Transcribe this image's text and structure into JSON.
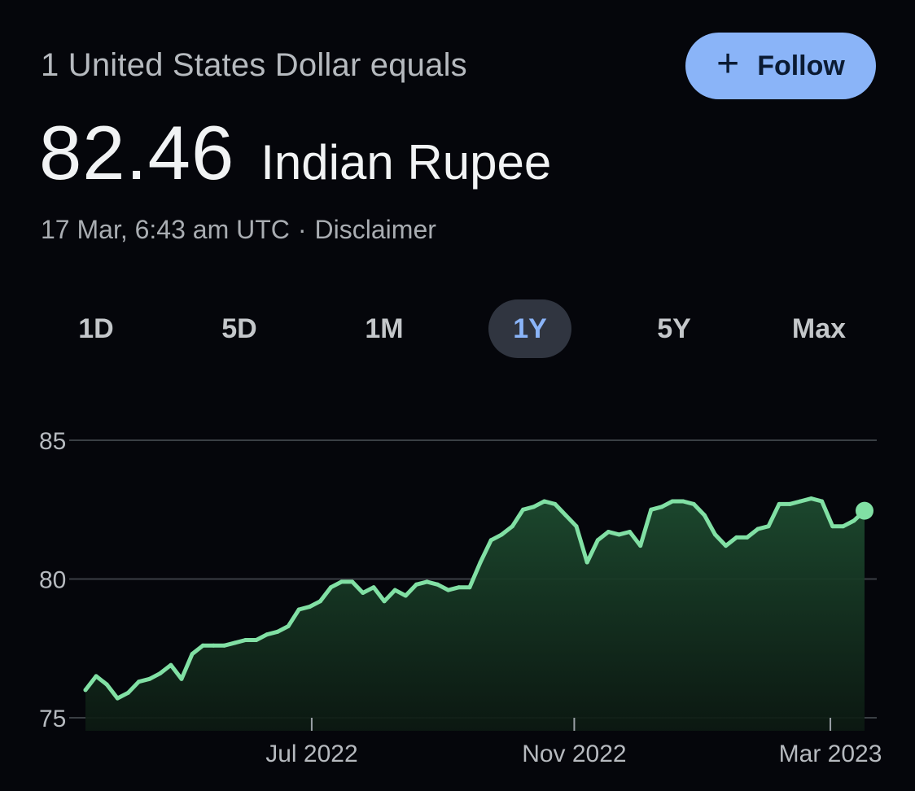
{
  "header": {
    "subtitle": "1 United States Dollar equals",
    "rate_value": "82.46",
    "rate_currency": "Indian Rupee",
    "timestamp": "17 Mar, 6:43 am UTC",
    "separator": "·",
    "disclaimer": "Disclaimer",
    "follow_icon": "plus-icon",
    "follow_label": "Follow"
  },
  "ranges": {
    "items": [
      "1D",
      "5D",
      "1M",
      "1Y",
      "5Y",
      "Max"
    ],
    "active": "1Y"
  },
  "colors": {
    "accent": "#8ab4f8",
    "line": "#81e0a4",
    "fill": "#1d4a2f",
    "grid": "#3a3f44",
    "background": "#05060b"
  },
  "chart_data": {
    "type": "area",
    "ylim": [
      75,
      85
    ],
    "yticks": [
      75,
      80,
      85
    ],
    "xticks": [
      "Jul 2022",
      "Nov 2022",
      "Mar 2023"
    ],
    "xtick_dates": [
      "2022-07-01",
      "2022-11-01",
      "2023-03-01"
    ],
    "xlim": [
      "2022-03-17",
      "2023-03-17"
    ],
    "grid": true,
    "series": [
      {
        "dates": [
          "2022-03-17",
          "2022-03-22",
          "2022-03-27",
          "2022-04-01",
          "2022-04-06",
          "2022-04-11",
          "2022-04-16",
          "2022-04-21",
          "2022-04-26",
          "2022-05-01",
          "2022-05-06",
          "2022-05-11",
          "2022-05-16",
          "2022-05-21",
          "2022-05-26",
          "2022-05-31",
          "2022-06-05",
          "2022-06-10",
          "2022-06-15",
          "2022-06-20",
          "2022-06-25",
          "2022-06-30",
          "2022-07-05",
          "2022-07-10",
          "2022-07-15",
          "2022-07-20",
          "2022-07-25",
          "2022-07-30",
          "2022-08-04",
          "2022-08-09",
          "2022-08-14",
          "2022-08-19",
          "2022-08-24",
          "2022-08-29",
          "2022-09-03",
          "2022-09-08",
          "2022-09-13",
          "2022-09-18",
          "2022-09-23",
          "2022-09-28",
          "2022-10-03",
          "2022-10-08",
          "2022-10-13",
          "2022-10-18",
          "2022-10-23",
          "2022-10-28",
          "2022-11-02",
          "2022-11-07",
          "2022-11-12",
          "2022-11-17",
          "2022-11-22",
          "2022-11-27",
          "2022-12-02",
          "2022-12-07",
          "2022-12-12",
          "2022-12-17",
          "2022-12-22",
          "2022-12-27",
          "2023-01-01",
          "2023-01-06",
          "2023-01-11",
          "2023-01-16",
          "2023-01-21",
          "2023-01-26",
          "2023-01-31",
          "2023-02-05",
          "2023-02-10",
          "2023-02-15",
          "2023-02-20",
          "2023-02-25",
          "2023-03-02",
          "2023-03-07",
          "2023-03-12",
          "2023-03-17"
        ],
        "values": [
          76.0,
          76.5,
          76.2,
          75.7,
          75.9,
          76.3,
          76.4,
          76.6,
          76.9,
          76.4,
          77.3,
          77.6,
          77.6,
          77.6,
          77.7,
          77.8,
          77.8,
          78.0,
          78.1,
          78.3,
          78.9,
          79.0,
          79.2,
          79.7,
          79.9,
          79.9,
          79.5,
          79.7,
          79.2,
          79.6,
          79.4,
          79.8,
          79.9,
          79.8,
          79.6,
          79.7,
          79.7,
          80.6,
          81.4,
          81.6,
          81.9,
          82.5,
          82.6,
          82.8,
          82.7,
          82.3,
          81.9,
          80.6,
          81.4,
          81.7,
          81.6,
          81.7,
          81.2,
          82.5,
          82.6,
          82.8,
          82.8,
          82.7,
          82.3,
          81.6,
          81.2,
          81.5,
          81.5,
          81.8,
          81.9,
          82.7,
          82.7,
          82.8,
          82.9,
          82.8,
          81.9,
          81.9,
          82.1,
          82.46
        ]
      }
    ]
  }
}
